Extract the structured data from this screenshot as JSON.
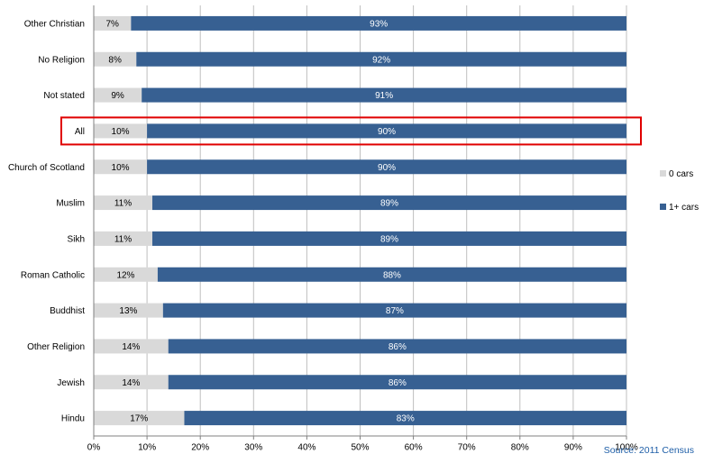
{
  "chart_data": {
    "type": "bar",
    "orientation": "horizontal",
    "stacked": true,
    "categories": [
      "Other Christian",
      "No Religion",
      "Not stated",
      "All",
      "Church of Scotland",
      "Muslim",
      "Sikh",
      "Roman Catholic",
      "Buddhist",
      "Other Religion",
      "Jewish",
      "Hindu"
    ],
    "series": [
      {
        "name": "0 cars",
        "color": "#d9d9d9",
        "values": [
          7,
          8,
          9,
          10,
          10,
          11,
          11,
          12,
          13,
          14,
          14,
          17
        ],
        "labels": [
          "7%",
          "8%",
          "9%",
          "10%",
          "10%",
          "11%",
          "11%",
          "12%",
          "13%",
          "14%",
          "14%",
          "17%"
        ]
      },
      {
        "name": "1+ cars",
        "color": "#376092",
        "values": [
          93,
          92,
          91,
          90,
          90,
          89,
          89,
          88,
          87,
          86,
          86,
          83
        ],
        "labels": [
          "93%",
          "92%",
          "91%",
          "90%",
          "90%",
          "89%",
          "89%",
          "88%",
          "87%",
          "86%",
          "86%",
          "83%"
        ]
      }
    ],
    "xlim": [
      0,
      100
    ],
    "xticks": [
      "0%",
      "10%",
      "20%",
      "30%",
      "40%",
      "50%",
      "60%",
      "70%",
      "80%",
      "90%",
      "100%"
    ],
    "grid": true,
    "legend_position": "right",
    "highlighted_category": "All",
    "highlight_color": "#e00000",
    "source": "Source: 2011 Census"
  }
}
